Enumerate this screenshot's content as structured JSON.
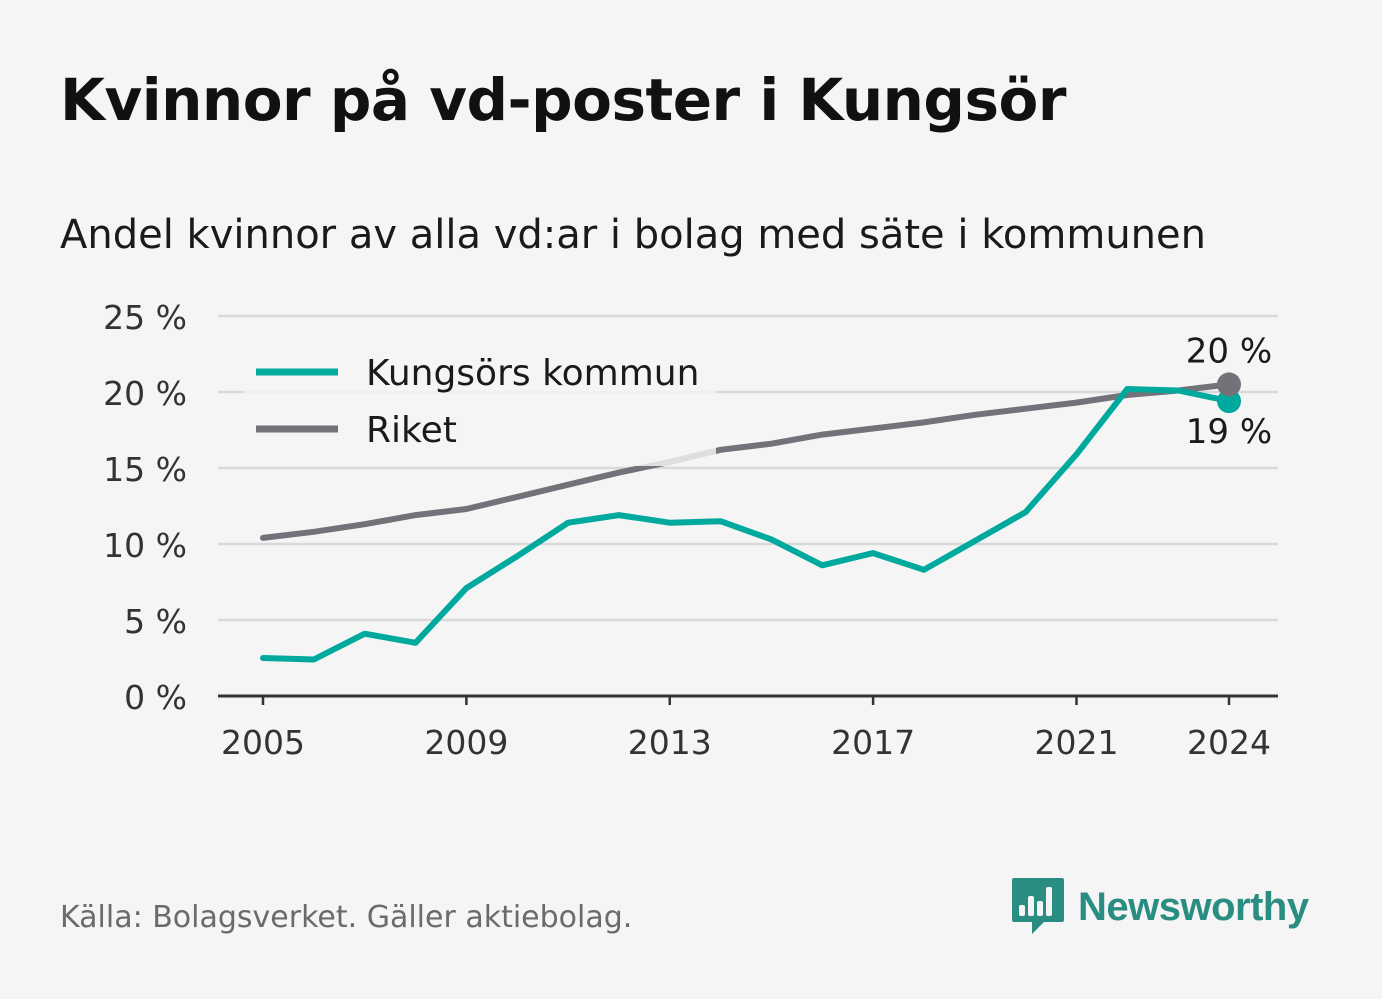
{
  "title": "Kvinnor på vd-poster i Kungsör",
  "subtitle": "Andel kvinnor av alla vd:ar i bolag med säte i kommunen",
  "source": "Källa: Bolagsverket. Gäller aktiebolag.",
  "brand": {
    "name": "Newsworthy",
    "logo_icon": "bar-chart-chat-bubble-icon"
  },
  "colors": {
    "kungsor": "#00a99d",
    "riket": "#737278",
    "grid": "#d9d9d9",
    "axis": "#333333",
    "brand": "#2a8d82"
  },
  "chart_data": {
    "type": "line",
    "xlim": [
      2005,
      2024
    ],
    "x_ticks": [
      2005,
      2009,
      2013,
      2017,
      2021,
      2024
    ],
    "ylim": [
      0,
      25
    ],
    "y_ticks": [
      0,
      5,
      10,
      15,
      20,
      25
    ],
    "y_tick_labels": [
      "0 %",
      "5 %",
      "10 %",
      "15 %",
      "20 %",
      "25 %"
    ],
    "grid": true,
    "legend_position": "top-left",
    "x": [
      2005,
      2006,
      2007,
      2008,
      2009,
      2010,
      2011,
      2012,
      2013,
      2014,
      2015,
      2016,
      2017,
      2018,
      2019,
      2020,
      2021,
      2022,
      2023,
      2024
    ],
    "series": [
      {
        "name": "Kungsörs kommun",
        "color": "#00a99d",
        "values": [
          2.5,
          2.4,
          4.1,
          3.5,
          7.1,
          9.2,
          11.4,
          11.9,
          11.4,
          11.5,
          10.3,
          8.6,
          9.4,
          8.3,
          10.2,
          12.1,
          15.9,
          20.2,
          20.1,
          19.4
        ],
        "end_label": "19 %"
      },
      {
        "name": "Riket",
        "color": "#737278",
        "values": [
          10.4,
          10.8,
          11.3,
          11.9,
          12.3,
          13.1,
          13.9,
          14.7,
          15.4,
          16.2,
          16.6,
          17.2,
          17.6,
          18.0,
          18.5,
          18.9,
          19.3,
          19.8,
          20.1,
          20.5
        ],
        "end_label": "20 %"
      }
    ]
  }
}
